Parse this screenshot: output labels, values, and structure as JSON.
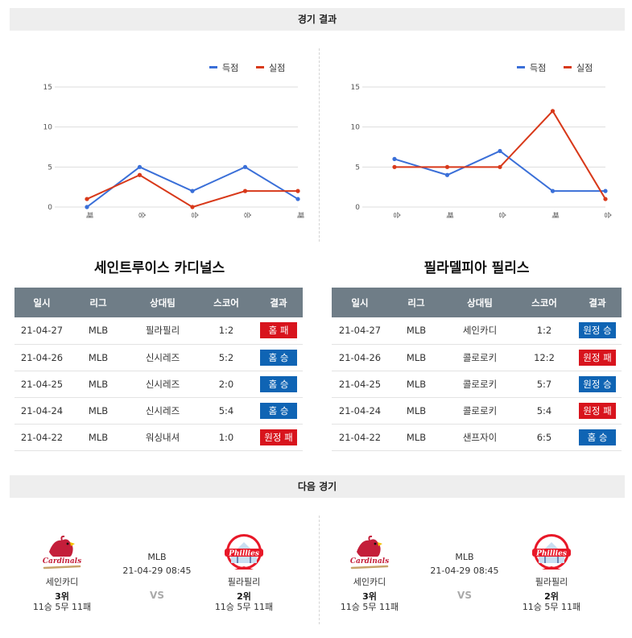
{
  "sections": {
    "results_title": "경기 결과",
    "next_title": "다음 경기"
  },
  "legend": {
    "scored": "득점",
    "allowed": "실점"
  },
  "colors": {
    "scored": "#3a6fd8",
    "allowed": "#d8391a",
    "header_bg": "#6f7d87",
    "win": "#0f64b4",
    "loss": "#d8141d"
  },
  "chart_data": [
    {
      "type": "line",
      "categories": [
        "패",
        "승",
        "승",
        "승",
        "패"
      ],
      "series": [
        {
          "name": "득점",
          "values": [
            0,
            5,
            2,
            5,
            1
          ]
        },
        {
          "name": "실점",
          "values": [
            1,
            4,
            0,
            2,
            2
          ]
        }
      ],
      "yticks": [
        "15",
        "10",
        "5",
        "0"
      ],
      "ylim": [
        0,
        15
      ],
      "grid": true,
      "legend": "top-right"
    },
    {
      "type": "line",
      "categories": [
        "승",
        "패",
        "승",
        "패",
        "승"
      ],
      "series": [
        {
          "name": "득점",
          "values": [
            6,
            4,
            7,
            2,
            2
          ]
        },
        {
          "name": "실점",
          "values": [
            5,
            5,
            5,
            12,
            1
          ]
        }
      ],
      "yticks": [
        "15",
        "10",
        "5",
        "0"
      ],
      "ylim": [
        0,
        15
      ],
      "grid": true,
      "legend": "top-right"
    }
  ],
  "columns": [
    "일시",
    "리그",
    "상대팀",
    "스코어",
    "결과"
  ],
  "teams": [
    {
      "name": "세인트루이스 카디널스",
      "rows": [
        {
          "date": "21-04-27",
          "league": "MLB",
          "opponent": "필라필리",
          "score": "1:2",
          "result": "홈 패",
          "win": false
        },
        {
          "date": "21-04-26",
          "league": "MLB",
          "opponent": "신시레즈",
          "score": "5:2",
          "result": "홈 승",
          "win": true
        },
        {
          "date": "21-04-25",
          "league": "MLB",
          "opponent": "신시레즈",
          "score": "2:0",
          "result": "홈 승",
          "win": true
        },
        {
          "date": "21-04-24",
          "league": "MLB",
          "opponent": "신시레즈",
          "score": "5:4",
          "result": "홈 승",
          "win": true
        },
        {
          "date": "21-04-22",
          "league": "MLB",
          "opponent": "워싱내셔",
          "score": "1:0",
          "result": "원정 패",
          "win": false
        }
      ]
    },
    {
      "name": "필라델피아 필리스",
      "rows": [
        {
          "date": "21-04-27",
          "league": "MLB",
          "opponent": "세인카디",
          "score": "1:2",
          "result": "원정 승",
          "win": true
        },
        {
          "date": "21-04-26",
          "league": "MLB",
          "opponent": "콜로로키",
          "score": "12:2",
          "result": "원정 패",
          "win": false
        },
        {
          "date": "21-04-25",
          "league": "MLB",
          "opponent": "콜로로키",
          "score": "5:7",
          "result": "원정 승",
          "win": true
        },
        {
          "date": "21-04-24",
          "league": "MLB",
          "opponent": "콜로로키",
          "score": "5:4",
          "result": "원정 패",
          "win": false
        },
        {
          "date": "21-04-22",
          "league": "MLB",
          "opponent": "샌프자이",
          "score": "6:5",
          "result": "홈 승",
          "win": true
        }
      ]
    }
  ],
  "next_match": {
    "league": "MLB",
    "datetime": "21-04-29 08:45",
    "vs": "VS",
    "home": {
      "name": "세인카디",
      "rank": "3위",
      "record": "11승 5무 11패",
      "logo_text": "Cardinals",
      "logo_icon": "cardinals-logo-icon"
    },
    "away": {
      "name": "필라필리",
      "rank": "2위",
      "record": "11승 5무 11패",
      "logo_text": "Phillies",
      "logo_icon": "phillies-logo-icon"
    }
  }
}
